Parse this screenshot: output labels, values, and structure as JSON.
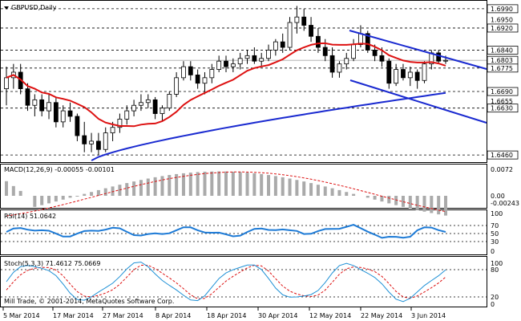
{
  "title": "GBPUSD,Daily",
  "copyright": "Mill Trade, © 2001-2014, MetaQuotes Software Corp.",
  "colors": {
    "price_axis_box": "#000000",
    "ma_red": "#dd1111",
    "ma_blue": "#1a2ad0",
    "trend_blue": "#1a2ad0",
    "macd_signal": "#dd1111",
    "rsi_line": "#1e7bd6",
    "stoch_main": "#1e90d6",
    "stoch_signal": "#dd1111",
    "candle_up": "#ffffff",
    "candle_down": "#000000"
  },
  "price_labels": {
    "l1": "1.6990",
    "l2": "1.6950",
    "l3": "1.6920",
    "l4": "1.6840",
    "l5": "1.6803",
    "l6": "1.6775",
    "l7": "1.6690",
    "l8": "1.6655",
    "l9": "1.6630",
    "l10": "1.6460"
  },
  "macd": {
    "label": "MACD(12,26,9) -0.00055 -0.00101",
    "axis_top": "0.0072",
    "axis_zero": "0.00",
    "axis_bot": "-0.00243"
  },
  "rsi": {
    "label": "RSI(14) 51.0642",
    "axis_100": "100",
    "axis_70": "70",
    "axis_50": "50",
    "axis_30": "30",
    "axis_0": "0"
  },
  "stoch": {
    "label": "Stoch(5,3,3) 71.4612 75.0669",
    "axis_100": "100",
    "axis_80": "80",
    "axis_20": "20",
    "axis_0": "0"
  },
  "x_axis": [
    "5 Mar 2014",
    "17 Mar 2014",
    "27 Mar 2014",
    "8 Apr 2014",
    "18 Apr 2014",
    "30 Apr 2014",
    "12 May 2014",
    "22 May 2014",
    "3 Jun 2014"
  ],
  "chart_data": {
    "type": "candlestick",
    "symbol": "GBPUSD",
    "timeframe": "Daily",
    "price_range": [
      1.644,
      1.701
    ],
    "candles_approx": [
      [
        1.67,
        1.678,
        1.664,
        1.674
      ],
      [
        1.674,
        1.679,
        1.67,
        1.676
      ],
      [
        1.676,
        1.679,
        1.668,
        1.67
      ],
      [
        1.67,
        1.672,
        1.662,
        1.664
      ],
      [
        1.664,
        1.668,
        1.66,
        1.666
      ],
      [
        1.666,
        1.668,
        1.66,
        1.662
      ],
      [
        1.662,
        1.668,
        1.659,
        1.665
      ],
      [
        1.665,
        1.667,
        1.656,
        1.658
      ],
      [
        1.658,
        1.664,
        1.656,
        1.662
      ],
      [
        1.662,
        1.665,
        1.658,
        1.66
      ],
      [
        1.66,
        1.661,
        1.651,
        1.653
      ],
      [
        1.653,
        1.658,
        1.647,
        1.65
      ],
      [
        1.65,
        1.654,
        1.647,
        1.651
      ],
      [
        1.651,
        1.654,
        1.646,
        1.648
      ],
      [
        1.648,
        1.656,
        1.647,
        1.654
      ],
      [
        1.654,
        1.658,
        1.651,
        1.656
      ],
      [
        1.656,
        1.661,
        1.654,
        1.659
      ],
      [
        1.659,
        1.664,
        1.657,
        1.662
      ],
      [
        1.662,
        1.666,
        1.66,
        1.664
      ],
      [
        1.664,
        1.668,
        1.662,
        1.665
      ],
      [
        1.665,
        1.668,
        1.663,
        1.666
      ],
      [
        1.666,
        1.667,
        1.659,
        1.661
      ],
      [
        1.661,
        1.664,
        1.658,
        1.663
      ],
      [
        1.663,
        1.669,
        1.662,
        1.668
      ],
      [
        1.668,
        1.676,
        1.667,
        1.674
      ],
      [
        1.674,
        1.68,
        1.673,
        1.678
      ],
      [
        1.678,
        1.68,
        1.673,
        1.675
      ],
      [
        1.675,
        1.677,
        1.67,
        1.672
      ],
      [
        1.672,
        1.676,
        1.668,
        1.674
      ],
      [
        1.674,
        1.679,
        1.672,
        1.677
      ],
      [
        1.677,
        1.682,
        1.676,
        1.68
      ],
      [
        1.68,
        1.682,
        1.676,
        1.678
      ],
      [
        1.678,
        1.681,
        1.676,
        1.679
      ],
      [
        1.679,
        1.683,
        1.677,
        1.681
      ],
      [
        1.681,
        1.684,
        1.679,
        1.682
      ],
      [
        1.682,
        1.685,
        1.679,
        1.68
      ],
      [
        1.68,
        1.683,
        1.678,
        1.681
      ],
      [
        1.681,
        1.686,
        1.68,
        1.684
      ],
      [
        1.684,
        1.688,
        1.682,
        1.687
      ],
      [
        1.687,
        1.69,
        1.683,
        1.685
      ],
      [
        1.685,
        1.696,
        1.684,
        1.694
      ],
      [
        1.694,
        1.7,
        1.69,
        1.696
      ],
      [
        1.696,
        1.699,
        1.691,
        1.693
      ],
      [
        1.693,
        1.696,
        1.687,
        1.689
      ],
      [
        1.689,
        1.692,
        1.683,
        1.685
      ],
      [
        1.685,
        1.688,
        1.68,
        1.682
      ],
      [
        1.682,
        1.685,
        1.674,
        1.676
      ],
      [
        1.676,
        1.68,
        1.674,
        1.679
      ],
      [
        1.679,
        1.683,
        1.677,
        1.681
      ],
      [
        1.681,
        1.688,
        1.68,
        1.686
      ],
      [
        1.686,
        1.693,
        1.685,
        1.69
      ],
      [
        1.69,
        1.691,
        1.683,
        1.684
      ],
      [
        1.684,
        1.686,
        1.68,
        1.682
      ],
      [
        1.682,
        1.685,
        1.678,
        1.68
      ],
      [
        1.68,
        1.681,
        1.67,
        1.672
      ],
      [
        1.672,
        1.679,
        1.671,
        1.677
      ],
      [
        1.677,
        1.679,
        1.673,
        1.674
      ],
      [
        1.674,
        1.678,
        1.671,
        1.676
      ],
      [
        1.676,
        1.677,
        1.67,
        1.673
      ],
      [
        1.673,
        1.68,
        1.672,
        1.679
      ],
      [
        1.679,
        1.684,
        1.677,
        1.683
      ],
      [
        1.683,
        1.684,
        1.679,
        1.68
      ],
      [
        1.68,
        1.682,
        1.679,
        1.6803
      ]
    ]
  }
}
